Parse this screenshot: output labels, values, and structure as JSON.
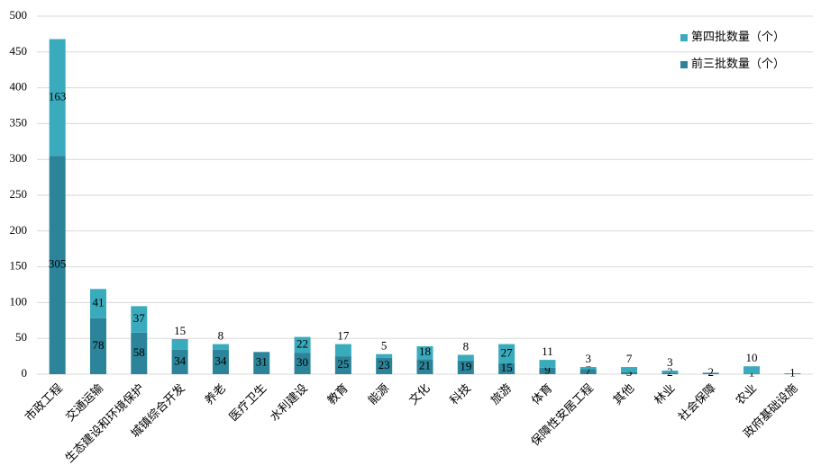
{
  "chart_data": {
    "type": "stacked-bar",
    "categories": [
      "市政工程",
      "交通运输",
      "生态建设和环境保护",
      "城镇综合开发",
      "养老",
      "医疗卫生",
      "水利建设",
      "教育",
      "能源",
      "文化",
      "科技",
      "旅游",
      "体育",
      "保障性安居工程",
      "其他",
      "林业",
      "社会保障",
      "农业",
      "政府基础设施"
    ],
    "series": [
      {
        "name": "前三批数量（个）",
        "color": "#2b8499",
        "values": [
          305,
          78,
          58,
          34,
          34,
          31,
          30,
          25,
          23,
          21,
          19,
          15,
          9,
          7,
          3,
          2,
          2,
          1,
          1
        ]
      },
      {
        "name": "第四批数量（个）",
        "color": "#3aabbd",
        "values": [
          163,
          41,
          37,
          15,
          8,
          null,
          22,
          17,
          5,
          18,
          8,
          27,
          11,
          3,
          7,
          3,
          null,
          10,
          null
        ]
      }
    ],
    "ylim": [
      0,
      500
    ],
    "yticks": [
      0,
      50,
      100,
      150,
      200,
      250,
      300,
      350,
      400,
      450,
      500
    ],
    "grid": true,
    "legend": "top-right"
  }
}
